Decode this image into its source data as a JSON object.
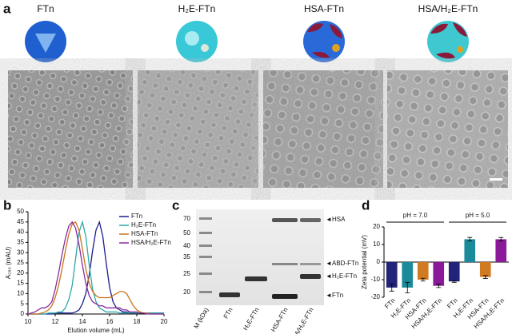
{
  "panel_a": {
    "label": "a",
    "titles": [
      "FTn",
      "H₂E-FTn",
      "HSA-FTn",
      "HSA/H₂E-FTn"
    ]
  },
  "panel_b": {
    "label": "b"
  },
  "panel_c": {
    "label": "c",
    "lanes": [
      "M (kDa)",
      "FTn",
      "H₂E-FTn",
      "HSA-FTn",
      "HSA/H₂E-FTn"
    ],
    "markers": [
      "70",
      "50",
      "40",
      "35",
      "25",
      "20"
    ],
    "bands": [
      "HSA",
      "ABD-FTn",
      "H₂E-FTn",
      "FTn"
    ]
  },
  "panel_d": {
    "label": "d"
  },
  "chart_data": [
    {
      "type": "line",
      "xlabel": "Elution volume (mL)",
      "ylabel": "A₂₈₀ (mAU)",
      "xlim": [
        10,
        20
      ],
      "xticks": [
        10,
        12,
        14,
        16,
        18,
        20
      ],
      "ylim": [
        0,
        50
      ],
      "yticks": [
        0,
        5,
        10,
        15,
        20,
        25,
        30,
        35,
        40,
        45,
        50
      ],
      "legend": "upper right",
      "x": [
        10,
        10.25,
        10.5,
        10.75,
        11,
        11.25,
        11.5,
        11.75,
        12,
        12.25,
        12.5,
        12.75,
        13,
        13.25,
        13.5,
        13.75,
        14,
        14.25,
        14.5,
        14.75,
        15,
        15.25,
        15.5,
        15.75,
        16,
        16.25,
        16.5,
        16.75,
        17,
        17.25,
        17.5,
        17.75,
        18,
        18.25,
        18.5,
        18.75,
        19,
        19.25,
        19.5,
        19.75,
        20
      ],
      "series": [
        {
          "name": "FTn",
          "color": "#1c1c8f",
          "values": [
            0,
            0,
            0,
            0,
            0,
            0,
            0,
            0,
            0.5,
            0.5,
            0.5,
            0.5,
            0.5,
            0.5,
            1,
            2,
            5,
            10,
            19,
            31,
            41,
            45,
            38,
            25,
            13,
            6,
            3,
            2,
            1,
            1,
            0.5,
            0.5,
            0.5,
            0.5,
            0.5,
            0.5,
            0.5,
            0.5,
            0.5,
            0.5,
            0.5
          ]
        },
        {
          "name": "H₂E-FTn",
          "color": "#2aa8a8",
          "values": [
            0,
            0,
            0,
            0,
            0,
            0,
            0.5,
            0.5,
            0.5,
            1,
            1,
            3,
            7,
            14,
            27,
            40,
            45,
            38,
            24,
            12,
            6,
            3,
            2,
            1,
            1,
            1,
            1,
            0.5,
            0.5,
            0.5,
            0.5,
            0.5,
            0.5,
            0.5,
            0.5,
            0.5,
            0.5,
            0.5,
            0.5,
            0.5,
            0.5
          ]
        },
        {
          "name": "HSA-FTn",
          "color": "#c8741c",
          "values": [
            0,
            0,
            0,
            0,
            0.5,
            1,
            2,
            4,
            8,
            14,
            22,
            31,
            39,
            44,
            45,
            41,
            32,
            22,
            15,
            11,
            9,
            8,
            8,
            8,
            8,
            9,
            10,
            11,
            11,
            10,
            7,
            4,
            2,
            1,
            0.5,
            0.5,
            0,
            0,
            0,
            0,
            0
          ]
        },
        {
          "name": "HSA/H₂E-FTn",
          "color": "#8a2a9c",
          "values": [
            0,
            0.5,
            1,
            2,
            3,
            3,
            4,
            6,
            12,
            20,
            29,
            37,
            43,
            45,
            42,
            34,
            24,
            15,
            9,
            6,
            5,
            4,
            4,
            3,
            3,
            3,
            3,
            3,
            2,
            2,
            1,
            1,
            1,
            0.5,
            0.5,
            0,
            0,
            0,
            0,
            0,
            0
          ]
        }
      ]
    },
    {
      "type": "bar",
      "ylabel": "Zeta potential (mV)",
      "ylim": [
        -20,
        20
      ],
      "yticks": [
        -20,
        -10,
        0,
        10,
        20
      ],
      "groups": [
        "pH = 7.0",
        "pH = 5.0"
      ],
      "categories": [
        "FTn",
        "H₂E-FTn",
        "HSA-FTn",
        "HSA/H₂E-FTn",
        "FTn",
        "H₂E-FTn",
        "HSA-FTn",
        "HSA/H₂E-FTn"
      ],
      "values": [
        -14.5,
        -14.5,
        -10,
        -13.5,
        -11,
        13,
        -8.5,
        13
      ],
      "errors": [
        2,
        3,
        0.8,
        1,
        0.5,
        1,
        0.8,
        1
      ],
      "colors": [
        "#22237a",
        "#1b8a9a",
        "#d07a22",
        "#8a1a9a",
        "#22237a",
        "#1b8a9a",
        "#d07a22",
        "#8a1a9a"
      ]
    }
  ]
}
